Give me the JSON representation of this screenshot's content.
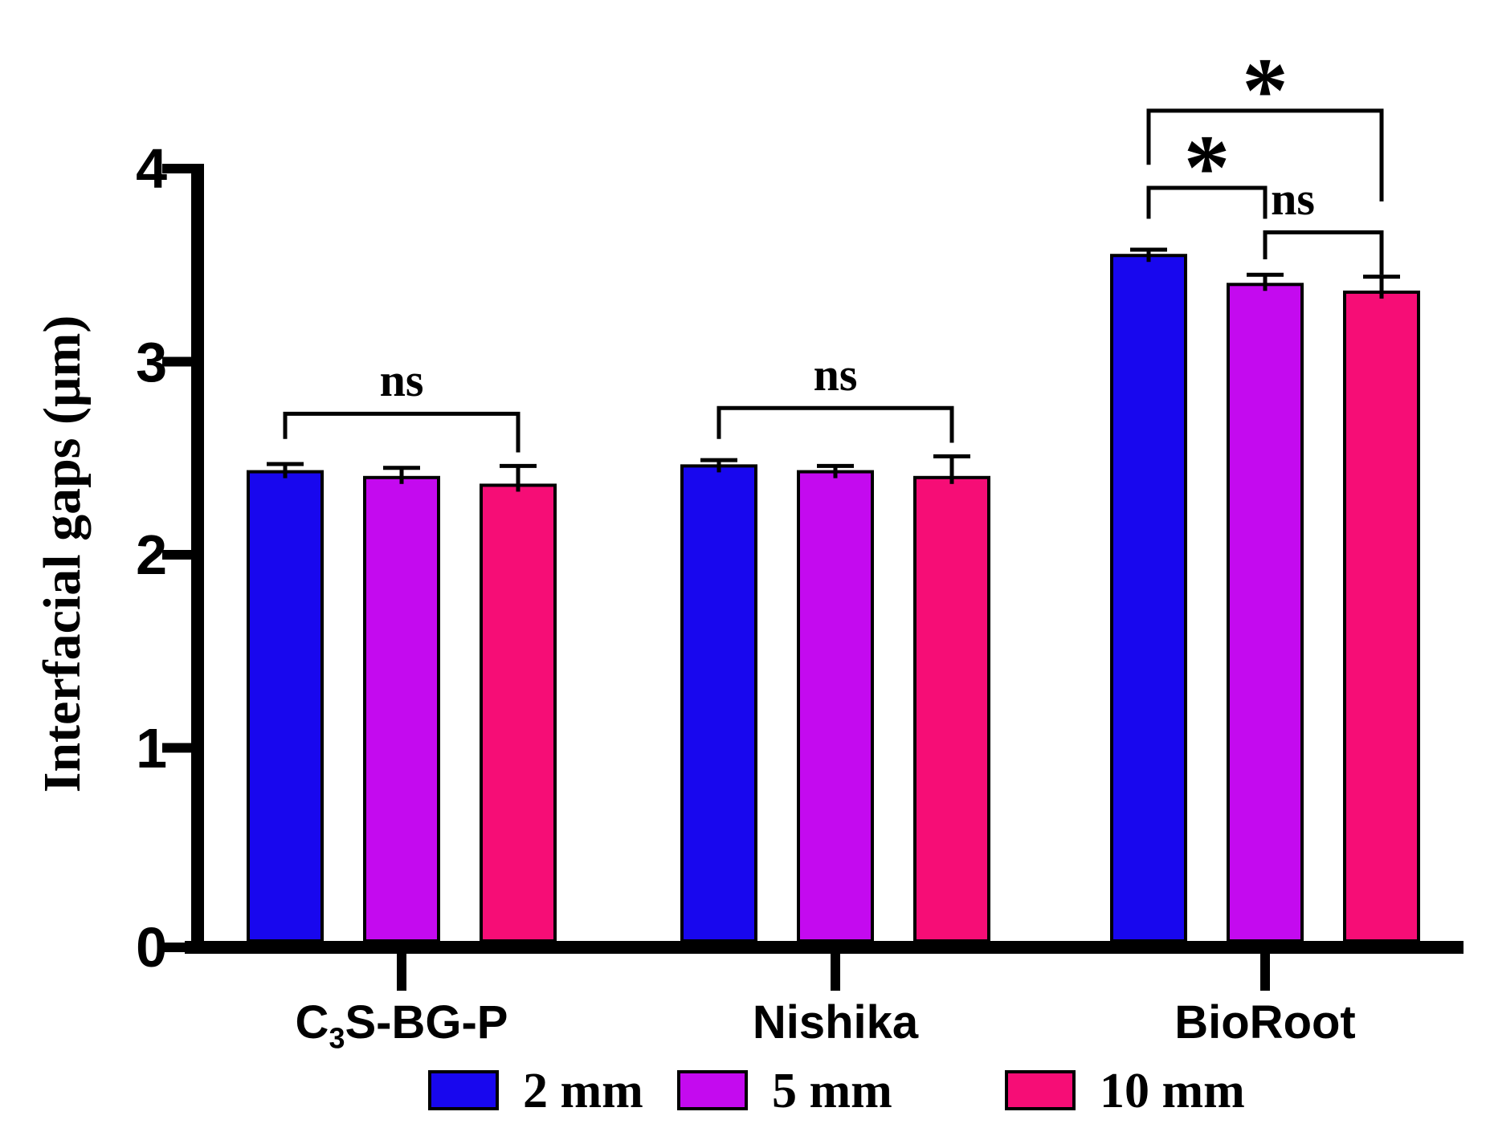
{
  "chart_data": {
    "type": "bar",
    "title": "",
    "ylabel": "Interfacial gaps (μm)",
    "xlabel": "",
    "categories": [
      "C3S-BG-P",
      "Nishika",
      "BioRoot"
    ],
    "categories_rich": [
      [
        [
          "C",
          false
        ],
        [
          "3",
          true
        ],
        [
          "S-BG-P",
          false
        ]
      ],
      [
        [
          "Nishika",
          false
        ]
      ],
      [
        [
          "BioRoot",
          false
        ]
      ]
    ],
    "series": [
      {
        "name": "2 mm",
        "color": "#1807ee",
        "values": [
          2.43,
          2.46,
          3.55
        ],
        "errors": [
          0.04,
          0.03,
          0.03
        ]
      },
      {
        "name": "5 mm",
        "color": "#c40aef",
        "values": [
          2.4,
          2.43,
          3.4
        ],
        "errors": [
          0.05,
          0.03,
          0.05
        ]
      },
      {
        "name": "10 mm",
        "color": "#f60d76",
        "values": [
          2.36,
          2.4,
          3.36
        ],
        "errors": [
          0.1,
          0.11,
          0.08
        ]
      }
    ],
    "ylim": [
      0,
      4
    ],
    "yticks": [
      0,
      1,
      2,
      3,
      4
    ],
    "grid": "off",
    "error_bars": "upper only, black caps",
    "legend_position": "bottom",
    "annotations": [
      {
        "group": 0,
        "from": 0,
        "to": 2,
        "label": "ns",
        "y": 2.73,
        "drop_from": 0.13,
        "drop_to": 0.2,
        "label_dx": 0
      },
      {
        "group": 1,
        "from": 0,
        "to": 2,
        "label": "ns",
        "y": 2.76,
        "drop_from": 0.16,
        "drop_to": 0.18,
        "label_dx": 0
      },
      {
        "group": 2,
        "from": 0,
        "to": 2,
        "label": "*",
        "y": 4.3,
        "drop_from": 0.28,
        "drop_to": 0.47,
        "label_dx": 0
      },
      {
        "group": 2,
        "from": 0,
        "to": 1,
        "label": "*",
        "y": 3.9,
        "drop_from": 0.16,
        "drop_to": 0.16,
        "label_dx": 0
      },
      {
        "group": 2,
        "from": 1,
        "to": 2,
        "label": "ns",
        "y": 3.67,
        "drop_from": 0.14,
        "drop_to": 0.22,
        "label_dx": -38
      }
    ],
    "axis_color": "#000000",
    "background_color": "#ffffff"
  }
}
